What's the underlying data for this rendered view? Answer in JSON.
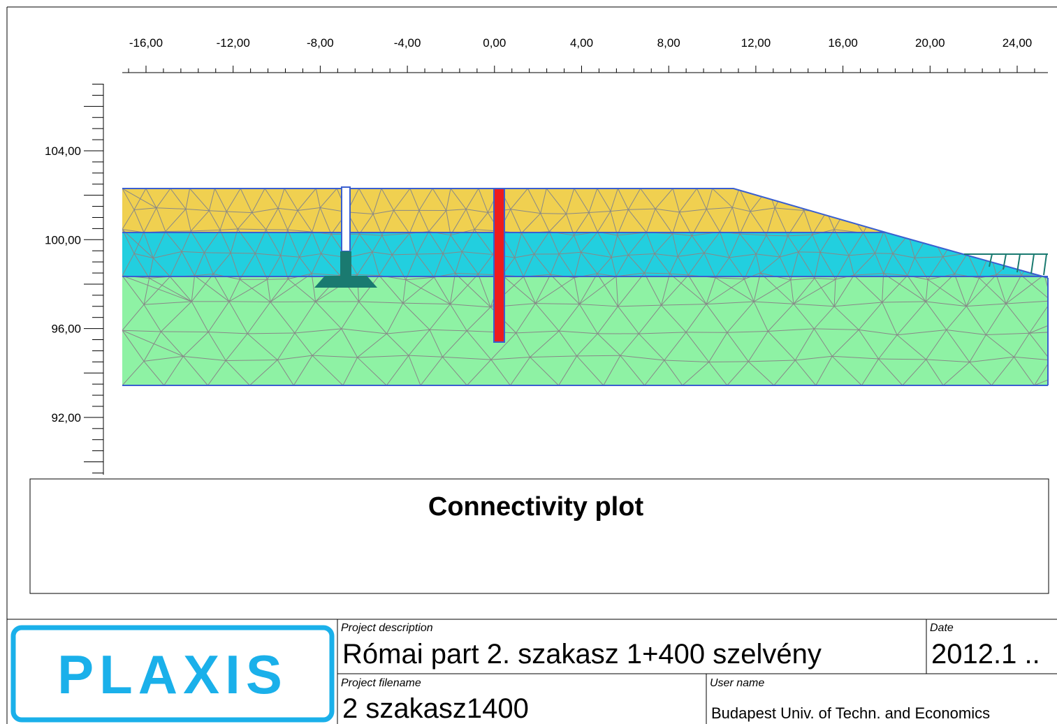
{
  "axis": {
    "x_labels": [
      "-16,00",
      "-12,00",
      "-8,00",
      "-4,00",
      "0,00",
      "4,00",
      "8,00",
      "12,00",
      "16,00",
      "20,00",
      "24,00"
    ],
    "y_labels": [
      "104,00",
      "100,00",
      "96,00",
      "92,00"
    ]
  },
  "plot": {
    "title": "Connectivity plot"
  },
  "footer": {
    "logo": "PLAXIS",
    "project_description_label": "Project description",
    "project_description": "Római part 2. szakasz 1+400 szelvény",
    "date_label": "Date",
    "date": "2012.1 ..",
    "project_filename_label": "Project filename",
    "project_filename": "2 szakasz1400",
    "user_name_label": "User name",
    "user_name": "Budapest Univ. of Techn. and Economics"
  }
}
